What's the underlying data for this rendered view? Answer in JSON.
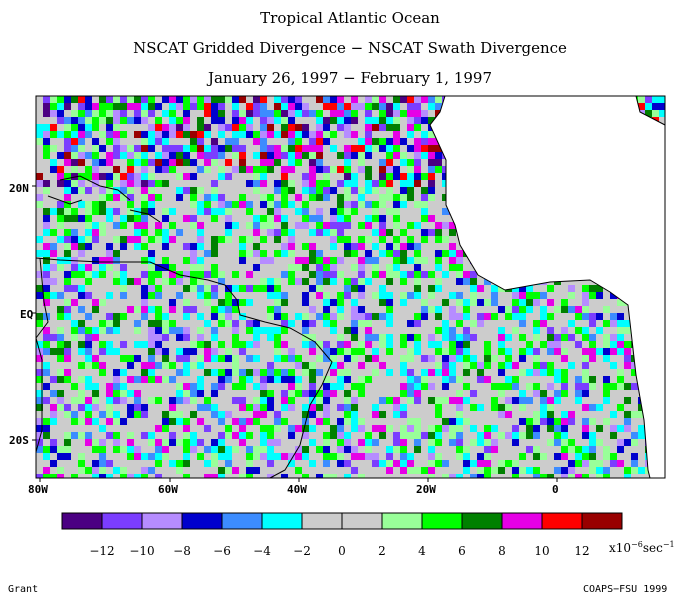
{
  "titles": {
    "line1": "Tropical Atlantic Ocean",
    "line2": "NSCAT Gridded Divergence − NSCAT Swath Divergence",
    "line3": "January 26, 1997 − February 1, 1997"
  },
  "axes": {
    "lat_labels": [
      "20N",
      "EQ",
      "20S"
    ],
    "lon_labels": [
      "80W",
      "60W",
      "40W",
      "20W",
      "0"
    ],
    "lat_range": [
      -25,
      33
    ],
    "lon_range": [
      -80,
      17
    ]
  },
  "colorbar": {
    "colors": [
      "#4b0082",
      "#7b3dff",
      "#b68cff",
      "#0000cd",
      "#3c8cff",
      "#00ffff",
      "#cccccc",
      "#cccccc",
      "#99ff99",
      "#00ff00",
      "#008000",
      "#e600e6",
      "#ff0000",
      "#990000"
    ],
    "labels": [
      "−12",
      "−10",
      "−8",
      "−6",
      "−4",
      "−2",
      "0",
      "2",
      "4",
      "6",
      "8",
      "10",
      "12"
    ],
    "unit_prefix": "x10",
    "unit_exp": "−6",
    "unit_suffix": "sec",
    "unit_suffix_exp": "−1"
  },
  "footer": {
    "left": "Grant",
    "right": "COAPS−FSU 1999"
  },
  "colors": {
    "land": "#ffffff",
    "ocean_base": "#cccccc",
    "coast": "#000000"
  }
}
